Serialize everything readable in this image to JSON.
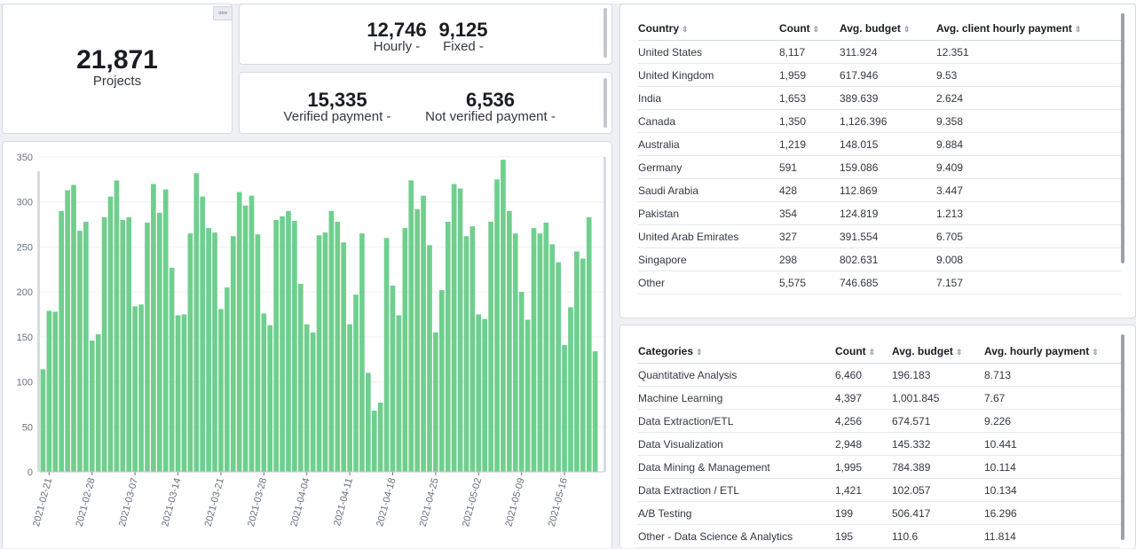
{
  "metrics": {
    "projects": {
      "value": "21,871",
      "label": "Projects"
    },
    "hourly": {
      "value": "12,746",
      "label": "Hourly -"
    },
    "fixed": {
      "value": "9,125",
      "label": "Fixed -"
    },
    "verified": {
      "value": "15,335",
      "label": "Verified payment -"
    },
    "not_verified": {
      "value": "6,536",
      "label": "Not verified payment -"
    }
  },
  "panel_menu_icon": "ellipsis-icon",
  "colors": {
    "bar": "#6fcf8e",
    "border": "#d3dae6",
    "background": "#eef0f3"
  },
  "chart_data": {
    "type": "bar",
    "title": "",
    "xlabel": "",
    "ylabel": "",
    "ylim": [
      0,
      350
    ],
    "yticks": [
      0,
      50,
      100,
      150,
      200,
      250,
      300,
      350
    ],
    "xtick_labels": [
      "2021-02-21",
      "2021-02-28",
      "2021-03-07",
      "2021-03-14",
      "2021-03-21",
      "2021-03-28",
      "2021-04-04",
      "2021-04-11",
      "2021-04-18",
      "2021-04-25",
      "2021-05-02",
      "2021-05-09",
      "2021-05-16"
    ],
    "categories": [
      "2021-02-20",
      "2021-02-21",
      "2021-02-22",
      "2021-02-23",
      "2021-02-24",
      "2021-02-25",
      "2021-02-26",
      "2021-02-27",
      "2021-02-28",
      "2021-03-01",
      "2021-03-02",
      "2021-03-03",
      "2021-03-04",
      "2021-03-05",
      "2021-03-06",
      "2021-03-07",
      "2021-03-08",
      "2021-03-09",
      "2021-03-10",
      "2021-03-11",
      "2021-03-12",
      "2021-03-13",
      "2021-03-14",
      "2021-03-15",
      "2021-03-16",
      "2021-03-17",
      "2021-03-18",
      "2021-03-19",
      "2021-03-20",
      "2021-03-21",
      "2021-03-22",
      "2021-03-23",
      "2021-03-24",
      "2021-03-25",
      "2021-03-26",
      "2021-03-27",
      "2021-03-28",
      "2021-03-29",
      "2021-03-30",
      "2021-03-31",
      "2021-04-01",
      "2021-04-02",
      "2021-04-03",
      "2021-04-04",
      "2021-04-05",
      "2021-04-06",
      "2021-04-07",
      "2021-04-08",
      "2021-04-09",
      "2021-04-10",
      "2021-04-11",
      "2021-04-12",
      "2021-04-13",
      "2021-04-14",
      "2021-04-15",
      "2021-04-16",
      "2021-04-17",
      "2021-04-18",
      "2021-04-19",
      "2021-04-20",
      "2021-04-21",
      "2021-04-22",
      "2021-04-23",
      "2021-04-24",
      "2021-04-25",
      "2021-04-26",
      "2021-04-27",
      "2021-04-28",
      "2021-04-29",
      "2021-04-30",
      "2021-05-01",
      "2021-05-02",
      "2021-05-03",
      "2021-05-04",
      "2021-05-05",
      "2021-05-06",
      "2021-05-07",
      "2021-05-08",
      "2021-05-09",
      "2021-05-10",
      "2021-05-11",
      "2021-05-12",
      "2021-05-13",
      "2021-05-14",
      "2021-05-15",
      "2021-05-16",
      "2021-05-17",
      "2021-05-18",
      "2021-05-19",
      "2021-05-20",
      "2021-05-21",
      "2021-05-22"
    ],
    "values": [
      114,
      179,
      178,
      290,
      313,
      319,
      268,
      278,
      146,
      153,
      283,
      306,
      324,
      280,
      283,
      184,
      186,
      277,
      320,
      288,
      314,
      227,
      174,
      175,
      265,
      332,
      306,
      271,
      266,
      181,
      205,
      262,
      311,
      296,
      307,
      264,
      176,
      163,
      280,
      284,
      290,
      279,
      209,
      164,
      155,
      263,
      266,
      290,
      278,
      255,
      164,
      197,
      265,
      110,
      68,
      77,
      260,
      207,
      174,
      271,
      324,
      292,
      307,
      252,
      155,
      202,
      278,
      320,
      315,
      262,
      273,
      175,
      170,
      278,
      325,
      347,
      290,
      265,
      200,
      169,
      271,
      265,
      277,
      253,
      233,
      141,
      183,
      245,
      237,
      283,
      134,
      0
    ]
  },
  "country_table": {
    "headers": [
      "Country",
      "Count",
      "Avg. budget",
      "Avg. client hourly payment"
    ],
    "rows": [
      [
        "United States",
        "8,117",
        "311.924",
        "12.351"
      ],
      [
        "United Kingdom",
        "1,959",
        "617.946",
        "9.53"
      ],
      [
        "India",
        "1,653",
        "389.639",
        "2.624"
      ],
      [
        "Canada",
        "1,350",
        "1,126.396",
        "9.358"
      ],
      [
        "Australia",
        "1,219",
        "148.015",
        "9.884"
      ],
      [
        "Germany",
        "591",
        "159.086",
        "9.409"
      ],
      [
        "Saudi Arabia",
        "428",
        "112.869",
        "3.447"
      ],
      [
        "Pakistan",
        "354",
        "124.819",
        "1.213"
      ],
      [
        "United Arab Emirates",
        "327",
        "391.554",
        "6.705"
      ],
      [
        "Singapore",
        "298",
        "802.631",
        "9.008"
      ],
      [
        "Other",
        "5,575",
        "746.685",
        "7.157"
      ]
    ]
  },
  "category_table": {
    "headers": [
      "Categories",
      "Count",
      "Avg. budget",
      "Avg. hourly payment"
    ],
    "rows": [
      [
        "Quantitative Analysis",
        "6,460",
        "196.183",
        "8.713"
      ],
      [
        "Machine Learning",
        "4,397",
        "1,001.845",
        "7.67"
      ],
      [
        "Data Extraction/ETL",
        "4,256",
        "674.571",
        "9.226"
      ],
      [
        "Data Visualization",
        "2,948",
        "145.332",
        "10.441"
      ],
      [
        "Data Mining & Management",
        "1,995",
        "784.389",
        "10.114"
      ],
      [
        "Data Extraction / ETL",
        "1,421",
        "102.057",
        "10.134"
      ],
      [
        "A/B Testing",
        "199",
        "506.417",
        "16.296"
      ],
      [
        "Other - Data Science & Analytics",
        "195",
        "110.6",
        "11.814"
      ]
    ]
  }
}
